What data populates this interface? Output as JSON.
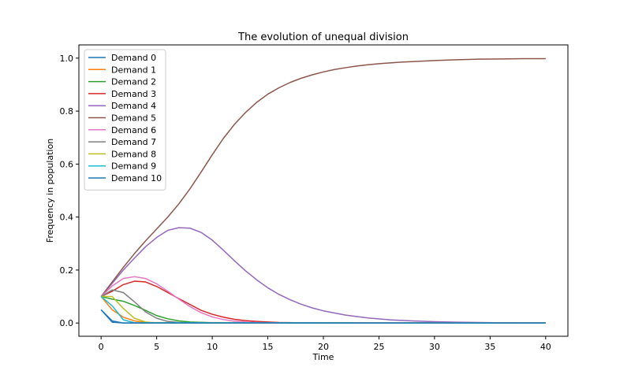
{
  "chart_data": {
    "type": "line",
    "title": "The evolution of unequal division",
    "xlabel": "Time",
    "ylabel": "Frequency in population",
    "xlim": [
      -2,
      42
    ],
    "ylim": [
      -0.05,
      1.05
    ],
    "xticks": [
      0,
      5,
      10,
      15,
      20,
      25,
      30,
      35,
      40
    ],
    "yticks": [
      0.0,
      0.2,
      0.4,
      0.6,
      0.8,
      1.0
    ],
    "xtick_labels": [
      "0",
      "5",
      "10",
      "15",
      "20",
      "25",
      "30",
      "35",
      "40"
    ],
    "ytick_labels": [
      "0.0",
      "0.2",
      "0.4",
      "0.6",
      "0.8",
      "1.0"
    ],
    "grid": false,
    "legend_position": "upper-left",
    "series": [
      {
        "name": "Demand 0",
        "color": "#1f77b4",
        "x": [
          0,
          1,
          2,
          40
        ],
        "values": [
          0.05,
          0.003,
          0.0,
          0.0
        ]
      },
      {
        "name": "Demand 1",
        "color": "#ff7f0e",
        "x": [
          0,
          1,
          2,
          3,
          4,
          40
        ],
        "values": [
          0.1,
          0.05,
          0.022,
          0.008,
          0.002,
          0.0
        ]
      },
      {
        "name": "Demand 2",
        "color": "#2ca02c",
        "x": [
          0,
          1,
          2,
          3,
          4,
          5,
          6,
          7,
          8,
          10,
          12,
          40
        ],
        "values": [
          0.1,
          0.09,
          0.082,
          0.066,
          0.048,
          0.028,
          0.016,
          0.008,
          0.004,
          0.001,
          0.0,
          0.0
        ]
      },
      {
        "name": "Demand 3",
        "color": "#d62728",
        "x": [
          0,
          1,
          2,
          3,
          4,
          5,
          6,
          7,
          8,
          9,
          10,
          11,
          12,
          13,
          14,
          15,
          16,
          18,
          20,
          40
        ],
        "values": [
          0.1,
          0.12,
          0.145,
          0.158,
          0.155,
          0.138,
          0.115,
          0.092,
          0.07,
          0.048,
          0.033,
          0.022,
          0.014,
          0.009,
          0.006,
          0.004,
          0.002,
          0.001,
          0.0,
          0.0
        ]
      },
      {
        "name": "Demand 4",
        "color": "#9467bd",
        "x": [
          0,
          1,
          2,
          3,
          4,
          5,
          6,
          7,
          8,
          9,
          10,
          11,
          12,
          13,
          14,
          15,
          16,
          17,
          18,
          19,
          20,
          22,
          24,
          26,
          28,
          30,
          32,
          34,
          36,
          38,
          40
        ],
        "values": [
          0.1,
          0.15,
          0.2,
          0.245,
          0.288,
          0.323,
          0.35,
          0.36,
          0.358,
          0.342,
          0.313,
          0.275,
          0.235,
          0.197,
          0.163,
          0.133,
          0.108,
          0.088,
          0.071,
          0.057,
          0.046,
          0.03,
          0.019,
          0.012,
          0.008,
          0.005,
          0.003,
          0.002,
          0.001,
          0.0,
          0.0
        ]
      },
      {
        "name": "Demand 5",
        "color": "#8c564b",
        "x": [
          0,
          1,
          2,
          3,
          4,
          5,
          6,
          7,
          8,
          9,
          10,
          11,
          12,
          13,
          14,
          15,
          16,
          17,
          18,
          19,
          20,
          21,
          22,
          23,
          24,
          25,
          26,
          27,
          28,
          30,
          32,
          34,
          36,
          38,
          40
        ],
        "values": [
          0.1,
          0.155,
          0.21,
          0.262,
          0.31,
          0.355,
          0.4,
          0.45,
          0.507,
          0.57,
          0.635,
          0.697,
          0.75,
          0.795,
          0.833,
          0.864,
          0.888,
          0.908,
          0.924,
          0.937,
          0.948,
          0.957,
          0.964,
          0.97,
          0.975,
          0.979,
          0.982,
          0.985,
          0.987,
          0.991,
          0.994,
          0.996,
          0.997,
          0.998,
          0.998
        ]
      },
      {
        "name": "Demand 6",
        "color": "#e377c2",
        "x": [
          0,
          1,
          2,
          3,
          4,
          5,
          6,
          7,
          8,
          9,
          10,
          11,
          12,
          13,
          14,
          16,
          40
        ],
        "values": [
          0.1,
          0.14,
          0.168,
          0.175,
          0.168,
          0.148,
          0.12,
          0.09,
          0.062,
          0.039,
          0.023,
          0.013,
          0.007,
          0.004,
          0.002,
          0.0,
          0.0
        ]
      },
      {
        "name": "Demand 7",
        "color": "#7f7f7f",
        "x": [
          0,
          1,
          2,
          3,
          4,
          5,
          6,
          7,
          8,
          40
        ],
        "values": [
          0.1,
          0.125,
          0.115,
          0.08,
          0.042,
          0.018,
          0.006,
          0.002,
          0.0,
          0.0
        ]
      },
      {
        "name": "Demand 8",
        "color": "#bcbd22",
        "x": [
          0,
          1,
          2,
          3,
          4,
          5,
          40
        ],
        "values": [
          0.1,
          0.1,
          0.055,
          0.018,
          0.004,
          0.0,
          0.0
        ]
      },
      {
        "name": "Demand 9",
        "color": "#17becf",
        "x": [
          0,
          1,
          2,
          3,
          40
        ],
        "values": [
          0.1,
          0.065,
          0.012,
          0.001,
          0.0
        ]
      },
      {
        "name": "Demand 10",
        "color": "#1f77b4",
        "x": [
          0,
          1,
          2,
          40
        ],
        "values": [
          0.05,
          0.008,
          0.0,
          0.0
        ]
      }
    ]
  }
}
